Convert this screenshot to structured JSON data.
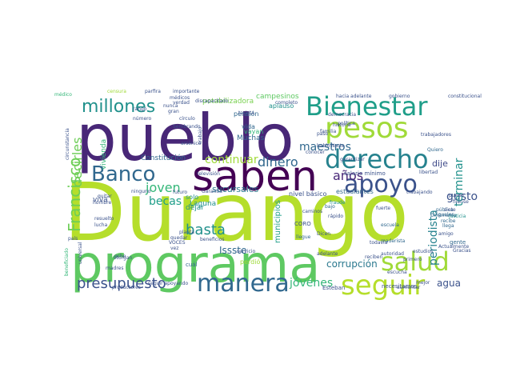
{
  "words": [
    {
      "text": "Durango",
      "color": "#b5de2b"
    },
    {
      "text": "pueblo",
      "color": "#482777"
    },
    {
      "text": "programa",
      "color": "#5ec962"
    },
    {
      "text": "saben",
      "color": "#440154"
    },
    {
      "text": "Bienestar",
      "color": "#1f9e89"
    },
    {
      "text": "derecho",
      "color": "#26828e"
    },
    {
      "text": "pesos",
      "color": "#a0da39"
    },
    {
      "text": "apoyo",
      "color": "#3b528b"
    },
    {
      "text": "salud",
      "color": "#a0da39"
    },
    {
      "text": "seguir",
      "color": "#b5de2b"
    },
    {
      "text": "manera",
      "color": "#31688e"
    },
    {
      "text": "Banco",
      "color": "#31688e"
    },
    {
      "text": "millones",
      "color": "#21918c"
    },
    {
      "text": "presupuesto",
      "color": "#3b528b"
    },
    {
      "text": "Francisco",
      "color": "#6ece58"
    },
    {
      "text": "decirles",
      "color": "#6ece58"
    },
    {
      "text": "maestros",
      "color": "#31688e"
    },
    {
      "text": "dinero",
      "color": "#31688e"
    },
    {
      "text": "continuar",
      "color": "#a0da39"
    },
    {
      "text": "joven",
      "color": "#35b779"
    },
    {
      "text": "becas",
      "color": "#1f9e89"
    },
    {
      "text": "basta",
      "color": "#21918c"
    },
    {
      "text": "años",
      "color": "#482777"
    },
    {
      "text": "gusto",
      "color": "#3b528b"
    },
    {
      "text": "terminar",
      "color": "#21918c"
    },
    {
      "text": "periodista",
      "color": "#26828e"
    },
    {
      "text": "jóvenes",
      "color": "#35b779"
    },
    {
      "text": "corrupción",
      "color": "#2a788e"
    },
    {
      "text": "agua",
      "color": "#3b528b"
    },
    {
      "text": "municipios",
      "color": "#1f9e89"
    },
    {
      "text": "sucursales",
      "color": "#2a788e"
    },
    {
      "text": "Laguna",
      "color": "#21918c"
    },
    {
      "text": "Issste",
      "color": "#31688e"
    },
    {
      "text": "dije",
      "color": "#3e4989"
    },
    {
      "text": "vivienda",
      "color": "#35b779"
    },
    {
      "text": "Constitución",
      "color": "#31688e"
    },
    {
      "text": "Muchas",
      "color": "#31688e"
    },
    {
      "text": "potabilizadora",
      "color": "#7ad151"
    },
    {
      "text": "campesinos",
      "color": "#5ec962"
    },
    {
      "text": "aplauso",
      "color": "#21918c"
    },
    {
      "text": "pensión",
      "color": "#31688e"
    },
    {
      "text": "vida",
      "color": "#31688e"
    },
    {
      "text": "vayan",
      "color": "#35b779"
    },
    {
      "text": "hacia adelante",
      "color": "#3b528b"
    },
    {
      "text": "gobierno",
      "color": "#3b528b"
    },
    {
      "text": "constitucional",
      "color": "#3b528b"
    },
    {
      "text": "trabajadores",
      "color": "#3b528b"
    },
    {
      "text": "Quiero",
      "color": "#31688e"
    },
    {
      "text": "estudiantes",
      "color": "#31688e"
    },
    {
      "text": "nivel básico",
      "color": "#3b528b"
    },
    {
      "text": "salario mínimo",
      "color": "#3b528b"
    },
    {
      "text": "libertad",
      "color": "#3b528b"
    },
    {
      "text": "CORO",
      "color": "#3b528b"
    },
    {
      "text": "llegue",
      "color": "#31688e"
    },
    {
      "text": "escuela",
      "color": "#31688e"
    },
    {
      "text": "todavía",
      "color": "#3b528b"
    },
    {
      "text": "gente",
      "color": "#31688e"
    },
    {
      "text": "necesitamos",
      "color": "#3b528b"
    },
    {
      "text": "Esteban",
      "color": "#3b528b"
    },
    {
      "text": "viva",
      "color": "#3b528b"
    },
    {
      "text": "dejar",
      "color": "#21918c"
    },
    {
      "text": "llega",
      "color": "#31688e"
    },
    {
      "text": "iguales",
      "color": "#31688e"
    },
    {
      "text": "pública",
      "color": "#31688e"
    },
    {
      "text": "televisión",
      "color": "#3b528b"
    },
    {
      "text": "solo",
      "color": "#21918c"
    },
    {
      "text": "fraude",
      "color": "#21918c"
    },
    {
      "text": "Dinamarca",
      "color": "#31688e"
    },
    {
      "text": "recibe",
      "color": "#31688e"
    },
    {
      "text": "maderista",
      "color": "#31688e"
    },
    {
      "text": "justicia",
      "color": "#21918c"
    },
    {
      "text": "bajo",
      "color": "#31688e"
    },
    {
      "text": "médico",
      "color": "#35b779"
    },
    {
      "text": "censura",
      "color": "#a0da39"
    },
    {
      "text": "parfira",
      "color": "#3b528b"
    },
    {
      "text": "importante",
      "color": "#3b528b"
    },
    {
      "text": "discapacitado",
      "color": "#3b528b"
    },
    {
      "text": "completo",
      "color": "#3b528b"
    },
    {
      "text": "tarjeta",
      "color": "#3b528b"
    },
    {
      "text": "democracia",
      "color": "#3b528b"
    },
    {
      "text": "política",
      "color": "#3b528b"
    },
    {
      "text": "historia",
      "color": "#3b528b"
    },
    {
      "text": "familia",
      "color": "#3b528b"
    },
    {
      "text": "fuerte",
      "color": "#3b528b"
    },
    {
      "text": "Norte",
      "color": "#3b528b"
    },
    {
      "text": "garantizar",
      "color": "#3b528b"
    },
    {
      "text": "futuro",
      "color": "#3b528b"
    },
    {
      "text": "Garantía",
      "color": "#3b528b"
    },
    {
      "text": "trabajando",
      "color": "#3b528b"
    },
    {
      "text": "beneficios",
      "color": "#3b528b"
    },
    {
      "text": "quedar",
      "color": "#3b528b"
    },
    {
      "text": "planta",
      "color": "#3b528b"
    },
    {
      "text": "adelante",
      "color": "#3b528b"
    },
    {
      "text": "servicio",
      "color": "#3b528b"
    },
    {
      "text": "perdió",
      "color": "#a0da39"
    },
    {
      "text": "cuál",
      "color": "#31688e"
    },
    {
      "text": "autoridad",
      "color": "#3b528b"
    },
    {
      "text": "estudios",
      "color": "#3b528b"
    },
    {
      "text": "reciben",
      "color": "#3b528b"
    },
    {
      "text": "primero",
      "color": "#3b528b"
    },
    {
      "text": "mejor",
      "color": "#3b528b"
    },
    {
      "text": "aumentar",
      "color": "#3b528b"
    },
    {
      "text": "productores",
      "color": "#3b528b"
    },
    {
      "text": "seguir apoyando",
      "color": "#3b528b"
    },
    {
      "text": "madres",
      "color": "#3b528b"
    },
    {
      "text": "otorgan",
      "color": "#3b528b"
    },
    {
      "text": "hombre",
      "color": "#3b528b"
    },
    {
      "text": "resuelto",
      "color": "#3b528b"
    },
    {
      "text": "lucha",
      "color": "#3b528b"
    },
    {
      "text": "país",
      "color": "#3b528b"
    },
    {
      "text": "VOCES",
      "color": "#3b528b"
    },
    {
      "text": "vez",
      "color": "#3b528b"
    },
    {
      "text": "arsénico",
      "color": "#3b528b"
    },
    {
      "text": "trabajo",
      "color": "#3b528b"
    },
    {
      "text": "nunca",
      "color": "#3b528b"
    },
    {
      "text": "rango",
      "color": "#3b528b"
    },
    {
      "text": "número",
      "color": "#3b528b"
    },
    {
      "text": "verdad",
      "color": "#3b528b"
    },
    {
      "text": "Actualmente",
      "color": "#3b528b"
    },
    {
      "text": "escucha",
      "color": "#3b528b"
    },
    {
      "text": "ocho",
      "color": "#3b528b"
    },
    {
      "text": "beneficiado",
      "color": "#35b779"
    },
    {
      "text": "universal",
      "color": "#3b528b"
    },
    {
      "text": "amigo",
      "color": "#3b528b"
    },
    {
      "text": "siete",
      "color": "#3b528b"
    },
    {
      "text": "fijense",
      "color": "#3b528b"
    },
    {
      "text": "puedo",
      "color": "#3b528b"
    },
    {
      "text": "habló",
      "color": "#3b528b"
    },
    {
      "text": "Gracias",
      "color": "#3b528b"
    },
    {
      "text": "círculo",
      "color": "#3b528b"
    },
    {
      "text": "circunstancia",
      "color": "#3b528b"
    },
    {
      "text": "médicos",
      "color": "#3b528b"
    },
    {
      "text": "Sembrando",
      "color": "#3b528b"
    },
    {
      "text": "gran",
      "color": "#3b528b"
    },
    {
      "text": "paso",
      "color": "#3b528b"
    },
    {
      "text": "Dicen",
      "color": "#3b528b"
    },
    {
      "text": "conocer",
      "color": "#3b528b"
    },
    {
      "text": "ninguno",
      "color": "#3b528b"
    },
    {
      "text": "quitar",
      "color": "#3b528b"
    },
    {
      "text": "rápido",
      "color": "#3b528b"
    },
    {
      "text": "caminos",
      "color": "#3b528b"
    }
  ]
}
